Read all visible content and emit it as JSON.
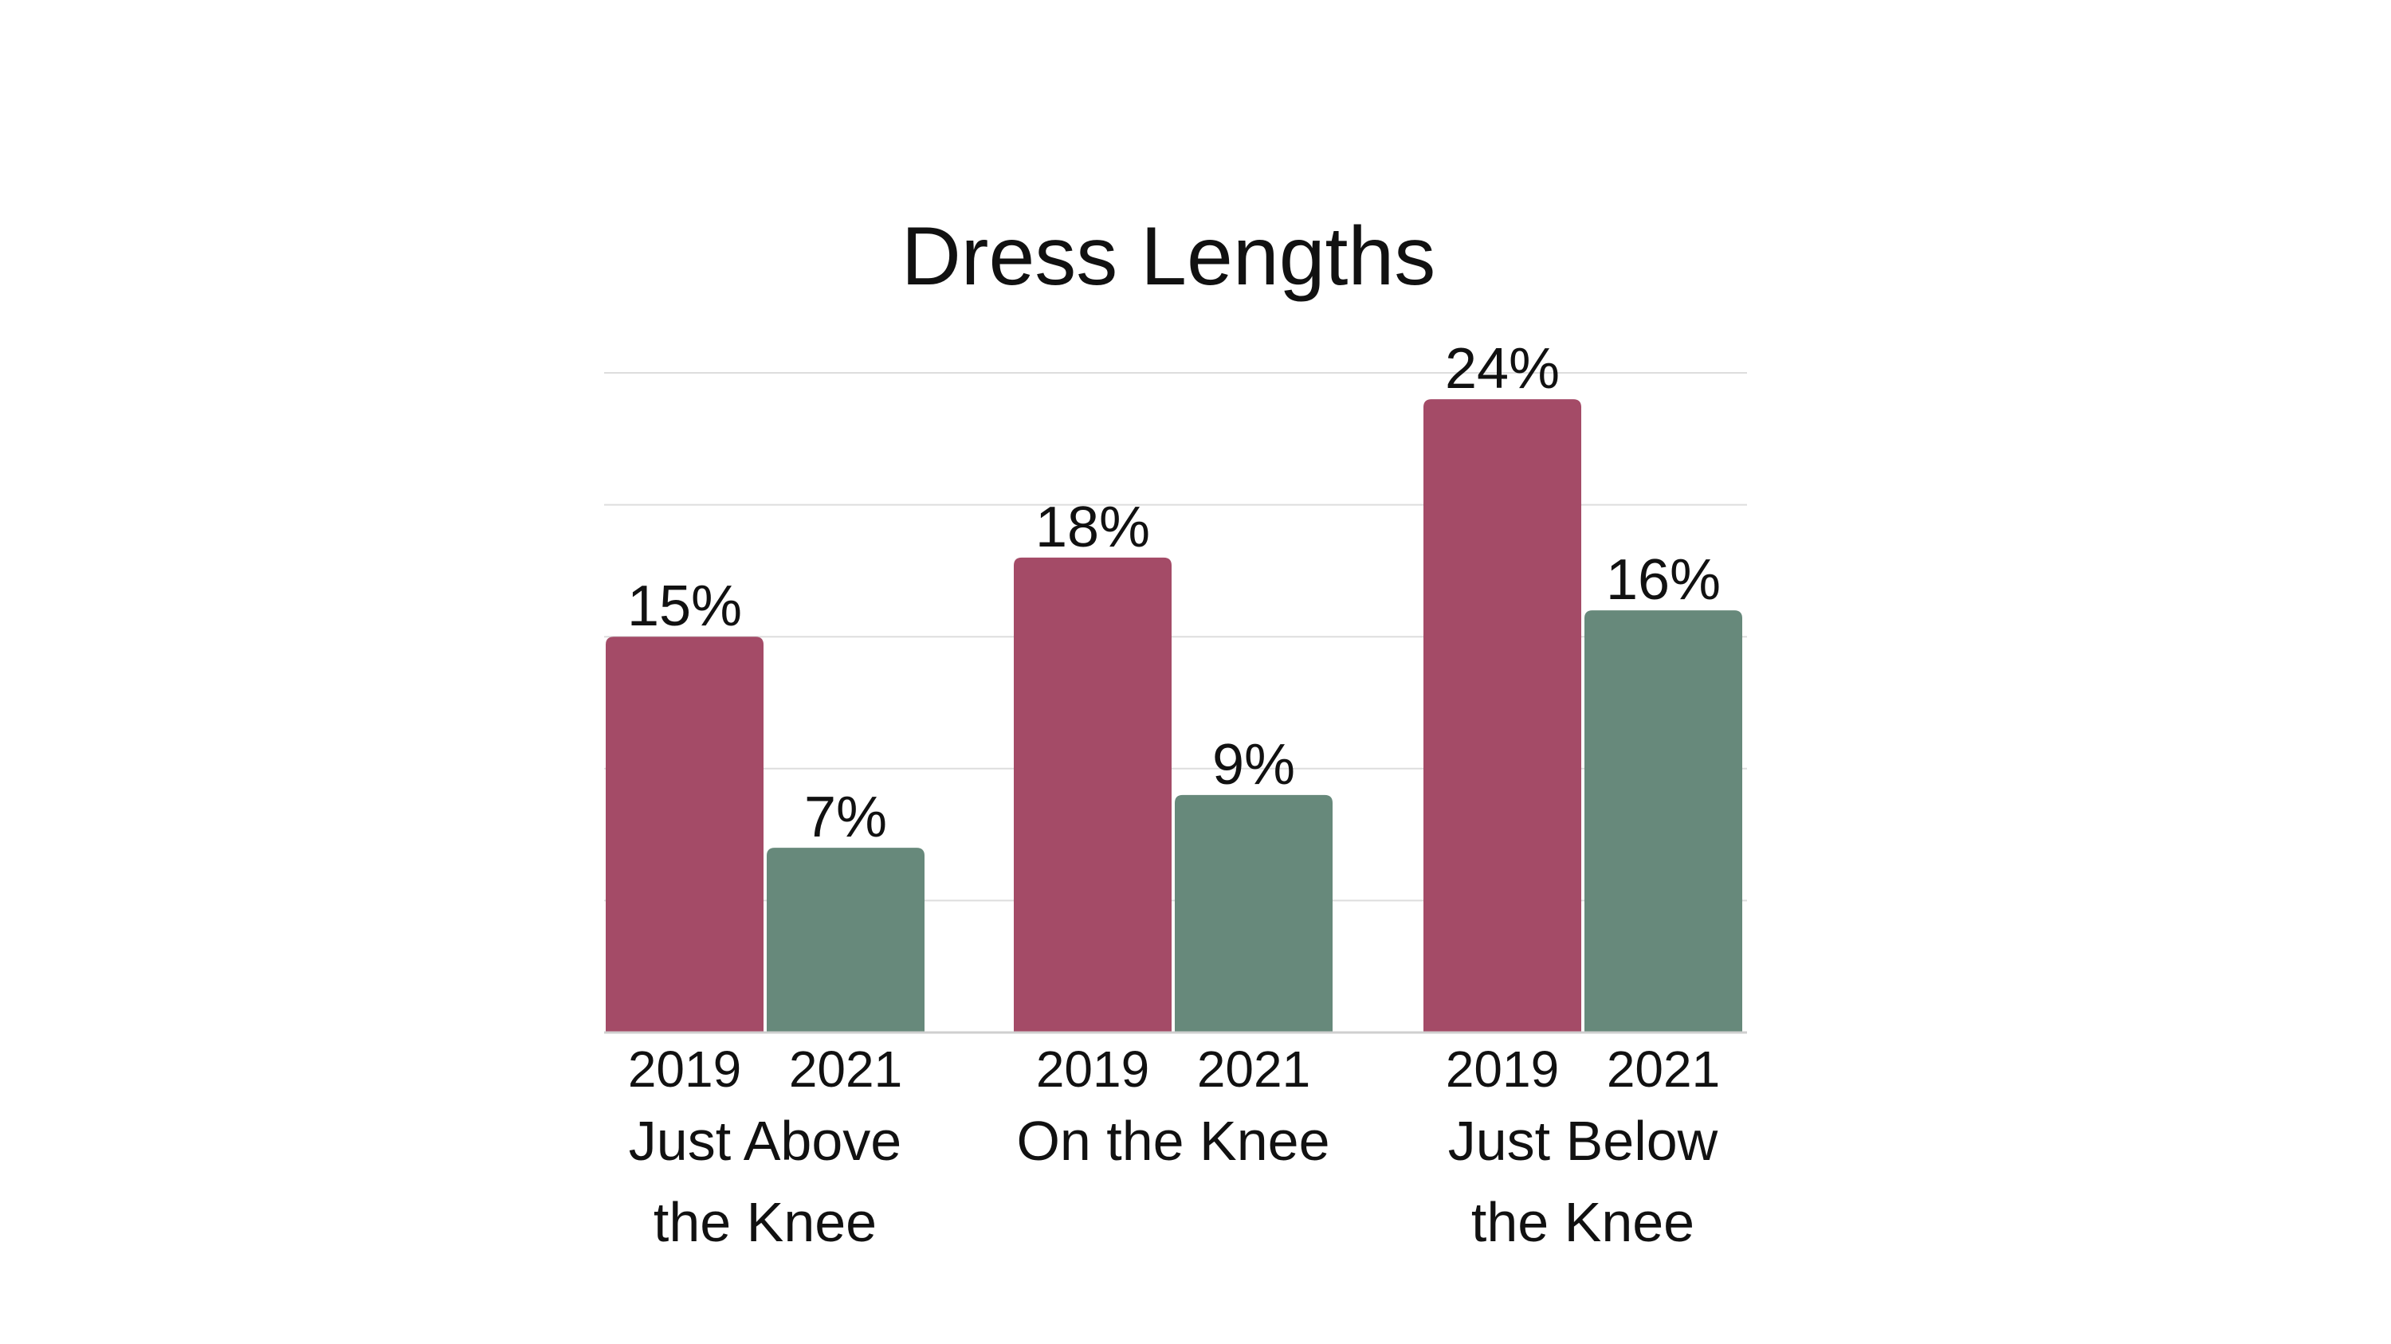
{
  "chart_data": {
    "type": "bar",
    "title": "Dress Lengths",
    "xlabel": "",
    "ylabel": "",
    "ylim": [
      0,
      25
    ],
    "grid": true,
    "legend": "none",
    "categories": [
      {
        "name": "Just Above the Knee",
        "label_lines": [
          "Just Above",
          "the Knee"
        ]
      },
      {
        "name": "On the Knee",
        "label_lines": [
          "On the Knee"
        ]
      },
      {
        "name": "Just Below the Knee",
        "label_lines": [
          "Just Below",
          "the Knee"
        ]
      }
    ],
    "series": [
      {
        "name": "2019",
        "color": "#a44b67",
        "values": [
          15,
          18,
          24
        ],
        "labels": [
          "15%",
          "18%",
          "24%"
        ]
      },
      {
        "name": "2021",
        "color": "#67897b",
        "values": [
          7,
          9,
          16
        ],
        "labels": [
          "7%",
          "9%",
          "16%"
        ]
      }
    ]
  },
  "colors": {
    "background": "#ffffff",
    "grid": "#dddddd",
    "text": "#111111"
  }
}
